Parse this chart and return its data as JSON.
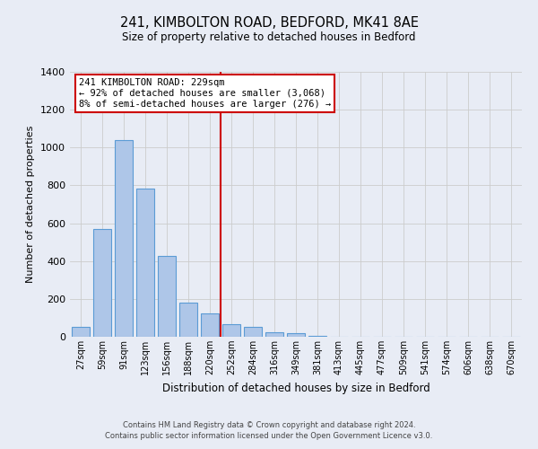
{
  "title1": "241, KIMBOLTON ROAD, BEDFORD, MK41 8AE",
  "title2": "Size of property relative to detached houses in Bedford",
  "xlabel": "Distribution of detached houses by size in Bedford",
  "ylabel": "Number of detached properties",
  "bar_labels": [
    "27sqm",
    "59sqm",
    "91sqm",
    "123sqm",
    "156sqm",
    "188sqm",
    "220sqm",
    "252sqm",
    "284sqm",
    "316sqm",
    "349sqm",
    "381sqm",
    "413sqm",
    "445sqm",
    "477sqm",
    "509sqm",
    "541sqm",
    "574sqm",
    "606sqm",
    "638sqm",
    "670sqm"
  ],
  "bar_values": [
    50,
    570,
    1040,
    785,
    425,
    180,
    125,
    65,
    50,
    25,
    20,
    5,
    2,
    0,
    0,
    0,
    0,
    0,
    0,
    0,
    0
  ],
  "bar_color": "#aec6e8",
  "bar_edge_color": "#5b9bd5",
  "reference_line_x": 6.5,
  "annotation_text_line1": "241 KIMBOLTON ROAD: 229sqm",
  "annotation_text_line2": "← 92% of detached houses are smaller (3,068)",
  "annotation_text_line3": "8% of semi-detached houses are larger (276) →",
  "annotation_box_color": "#ffffff",
  "annotation_box_edge_color": "#cc0000",
  "vline_color": "#cc0000",
  "grid_color": "#cccccc",
  "background_color": "#e8ecf5",
  "ylim": [
    0,
    1400
  ],
  "yticks": [
    0,
    200,
    400,
    600,
    800,
    1000,
    1200,
    1400
  ],
  "footer1": "Contains HM Land Registry data © Crown copyright and database right 2024.",
  "footer2": "Contains public sector information licensed under the Open Government Licence v3.0."
}
